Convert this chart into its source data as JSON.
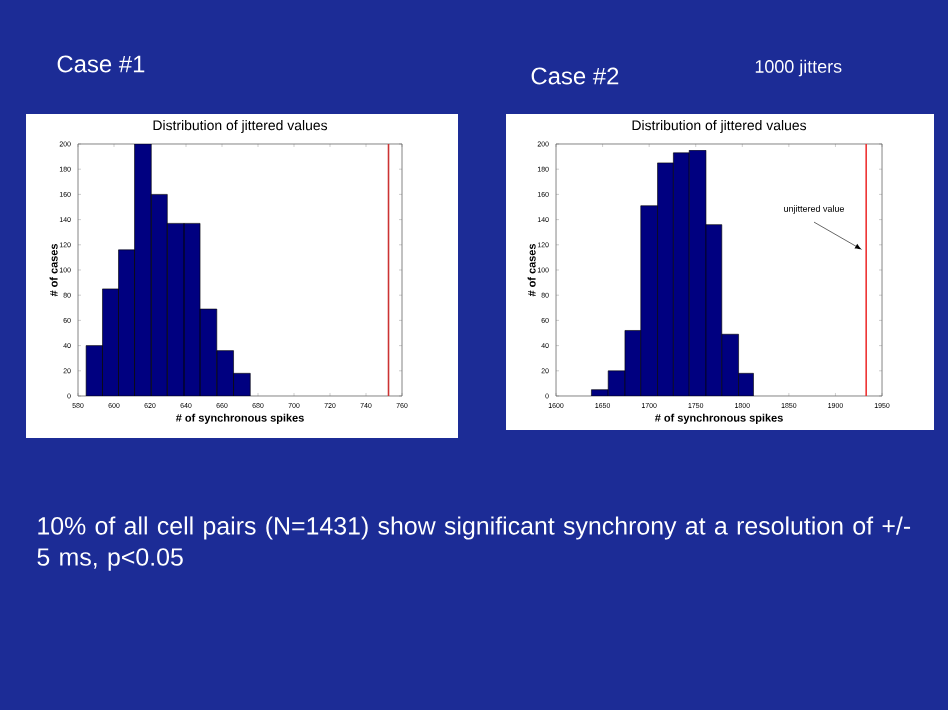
{
  "chart_data": [
    {
      "type": "histogram",
      "title": "Distribution of jittered values",
      "xlabel": "# of synchronous spikes",
      "ylabel": "# of cases",
      "bins": [
        584.5,
        593.6,
        602.5,
        611.4,
        620.7,
        629.6,
        638.9,
        647.8,
        657.1,
        666.4,
        675.7
      ],
      "values": [
        40,
        85,
        116,
        200,
        160,
        137,
        137,
        69,
        36,
        18
      ],
      "color": "#000080",
      "xlim": [
        580,
        760
      ],
      "xticks": [
        580,
        600,
        620,
        640,
        660,
        680,
        700,
        720,
        740,
        760
      ],
      "ylim": [
        0,
        200
      ],
      "yticks": [
        0,
        20,
        40,
        60,
        80,
        100,
        120,
        140,
        160,
        180,
        200
      ],
      "ref_lines": [
        {
          "axis": "x",
          "value": 752.5,
          "color": "#cc3333"
        }
      ],
      "annotations": [
        "Case #1"
      ]
    },
    {
      "type": "histogram",
      "title": "Distribution of jittered values",
      "xlabel": "# of synchronous spikes",
      "ylabel": "# of cases",
      "bins": [
        1638,
        1656,
        1674,
        1691,
        1709,
        1726,
        1743,
        1761,
        1778,
        1796,
        1812
      ],
      "values": [
        5,
        20,
        52,
        151,
        185,
        193,
        195,
        136,
        49,
        18
      ],
      "color": "#000080",
      "xlim": [
        1600,
        1950
      ],
      "xticks": [
        1600,
        1650,
        1700,
        1750,
        1800,
        1850,
        1900,
        1950
      ],
      "ylim": [
        0,
        200
      ],
      "yticks": [
        0,
        20,
        40,
        60,
        80,
        100,
        120,
        140,
        160,
        180,
        200
      ],
      "ref_lines": [
        {
          "axis": "x",
          "value": 1933,
          "color": "#ee3333",
          "label": "unjittered value"
        }
      ],
      "annotations": [
        "Case #2",
        "1000 jitters",
        "10% of all cell pairs (N=1431) show significant synchrony at a resolution of +/-5 ms, p<0.05"
      ]
    }
  ]
}
